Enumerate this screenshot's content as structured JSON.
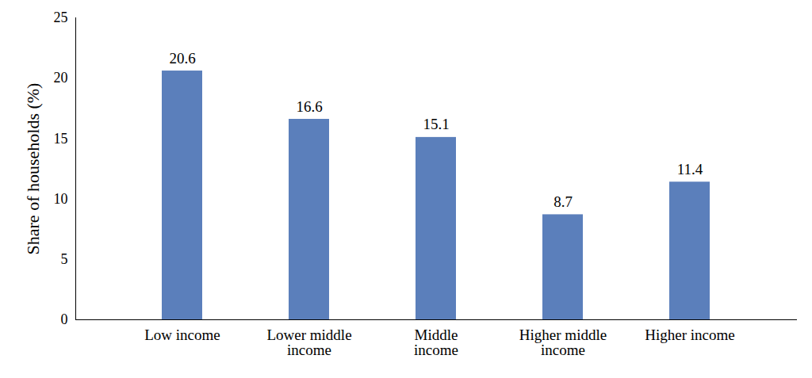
{
  "chart_data": {
    "type": "bar",
    "categories": [
      "Low income",
      "Lower middle income",
      "Middle income",
      "Higher middle income",
      "Higher income"
    ],
    "values": [
      20.6,
      16.6,
      15.1,
      8.7,
      11.4
    ],
    "color": "#5b7fbb",
    "ylabel": "Share of households (%)",
    "ylim": [
      0,
      25
    ],
    "yticks": [
      0,
      5,
      10,
      15,
      20,
      25
    ],
    "grid": false,
    "data_labels": true
  }
}
